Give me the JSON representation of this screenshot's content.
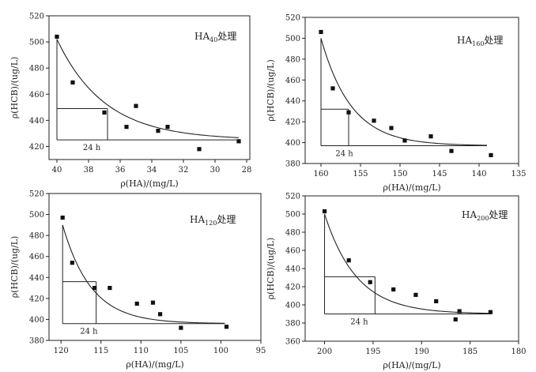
{
  "chart_data": [
    {
      "type": "scatter",
      "panel_label": {
        "main": "HA",
        "sub": "40",
        "suffix": "处理"
      },
      "xlabel": "ρ(HA)/(mg/L)",
      "ylabel": "ρ(HCB)/(ug/L)",
      "xlim": [
        40.5,
        27.8
      ],
      "ylim": [
        410,
        520
      ],
      "x_ticks": [
        40,
        38,
        36,
        34,
        32,
        30,
        28
      ],
      "y_ticks": [
        420,
        440,
        460,
        480,
        500,
        520
      ],
      "annotation": "24 h",
      "points": [
        {
          "x": 40.0,
          "y": 504
        },
        {
          "x": 39.0,
          "y": 469
        },
        {
          "x": 37.0,
          "y": 446
        },
        {
          "x": 35.6,
          "y": 435
        },
        {
          "x": 35.0,
          "y": 451
        },
        {
          "x": 33.6,
          "y": 432
        },
        {
          "x": 33.0,
          "y": 435
        },
        {
          "x": 31.0,
          "y": 418
        },
        {
          "x": 28.5,
          "y": 424
        }
      ],
      "fit_curve": {
        "x_start": 40.0,
        "x_end": 28.5,
        "y_start": 502,
        "y_asymptote": 425,
        "rate": 0.33
      },
      "marker_24h": {
        "x": 36.8,
        "y": 449
      }
    },
    {
      "type": "scatter",
      "panel_label": {
        "main": "HA",
        "sub": "160",
        "suffix": "处理"
      },
      "xlabel": "ρ(HA)/(mg/L)",
      "ylabel": "ρ(HCB)/(ug/L)",
      "xlim": [
        162,
        135
      ],
      "ylim": [
        380,
        520
      ],
      "x_ticks": [
        160,
        155,
        150,
        145,
        140,
        135
      ],
      "y_ticks": [
        380,
        400,
        420,
        440,
        460,
        480,
        500,
        520
      ],
      "annotation": "24 h",
      "points": [
        {
          "x": 160.0,
          "y": 506
        },
        {
          "x": 158.5,
          "y": 452
        },
        {
          "x": 156.5,
          "y": 429
        },
        {
          "x": 153.3,
          "y": 421
        },
        {
          "x": 151.1,
          "y": 414
        },
        {
          "x": 149.4,
          "y": 402
        },
        {
          "x": 146.1,
          "y": 406
        },
        {
          "x": 143.5,
          "y": 392
        },
        {
          "x": 138.5,
          "y": 388
        }
      ],
      "fit_curve": {
        "x_start": 160.0,
        "x_end": 139.0,
        "y_start": 500,
        "y_asymptote": 397,
        "rate": 0.26
      },
      "marker_24h": {
        "x": 156.5,
        "y": 432
      }
    },
    {
      "type": "scatter",
      "panel_label": {
        "main": "HA",
        "sub": "120",
        "suffix": "处理"
      },
      "xlabel": "ρ(HA)/(mg/L)",
      "ylabel": "ρ(HCB)/(ug/L)",
      "xlim": [
        121.5,
        95
      ],
      "ylim": [
        380,
        520
      ],
      "x_ticks": [
        120,
        115,
        110,
        105,
        100,
        95
      ],
      "y_ticks": [
        380,
        400,
        420,
        440,
        460,
        480,
        500,
        520
      ],
      "annotation": "24 h",
      "points": [
        {
          "x": 119.8,
          "y": 497
        },
        {
          "x": 118.6,
          "y": 454
        },
        {
          "x": 115.8,
          "y": 430
        },
        {
          "x": 113.9,
          "y": 430
        },
        {
          "x": 110.5,
          "y": 415
        },
        {
          "x": 108.5,
          "y": 416
        },
        {
          "x": 107.6,
          "y": 405
        },
        {
          "x": 105.0,
          "y": 392
        },
        {
          "x": 99.3,
          "y": 393
        }
      ],
      "fit_curve": {
        "x_start": 119.8,
        "x_end": 99.5,
        "y_start": 490,
        "y_asymptote": 396,
        "rate": 0.28
      },
      "marker_24h": {
        "x": 115.6,
        "y": 436
      }
    },
    {
      "type": "scatter",
      "panel_label": {
        "main": "HA",
        "sub": "200",
        "suffix": "处理"
      },
      "xlabel": "ρ(HA)/(mg/L)",
      "ylabel": "ρ(HCB)/(ug/L)",
      "xlim": [
        202,
        180
      ],
      "ylim": [
        360,
        520
      ],
      "x_ticks": [
        200,
        195,
        190,
        185,
        180
      ],
      "y_ticks": [
        360,
        380,
        400,
        420,
        440,
        460,
        480,
        500,
        520
      ],
      "annotation": "24 h",
      "points": [
        {
          "x": 200.0,
          "y": 503
        },
        {
          "x": 197.5,
          "y": 449
        },
        {
          "x": 195.3,
          "y": 425
        },
        {
          "x": 192.9,
          "y": 417
        },
        {
          "x": 190.6,
          "y": 411
        },
        {
          "x": 188.5,
          "y": 404
        },
        {
          "x": 186.5,
          "y": 384
        },
        {
          "x": 186.1,
          "y": 393
        },
        {
          "x": 182.9,
          "y": 392
        }
      ],
      "fit_curve": {
        "x_start": 200.0,
        "x_end": 182.9,
        "y_start": 500,
        "y_asymptote": 390,
        "rate": 0.3
      },
      "marker_24h": {
        "x": 194.8,
        "y": 431
      }
    }
  ]
}
